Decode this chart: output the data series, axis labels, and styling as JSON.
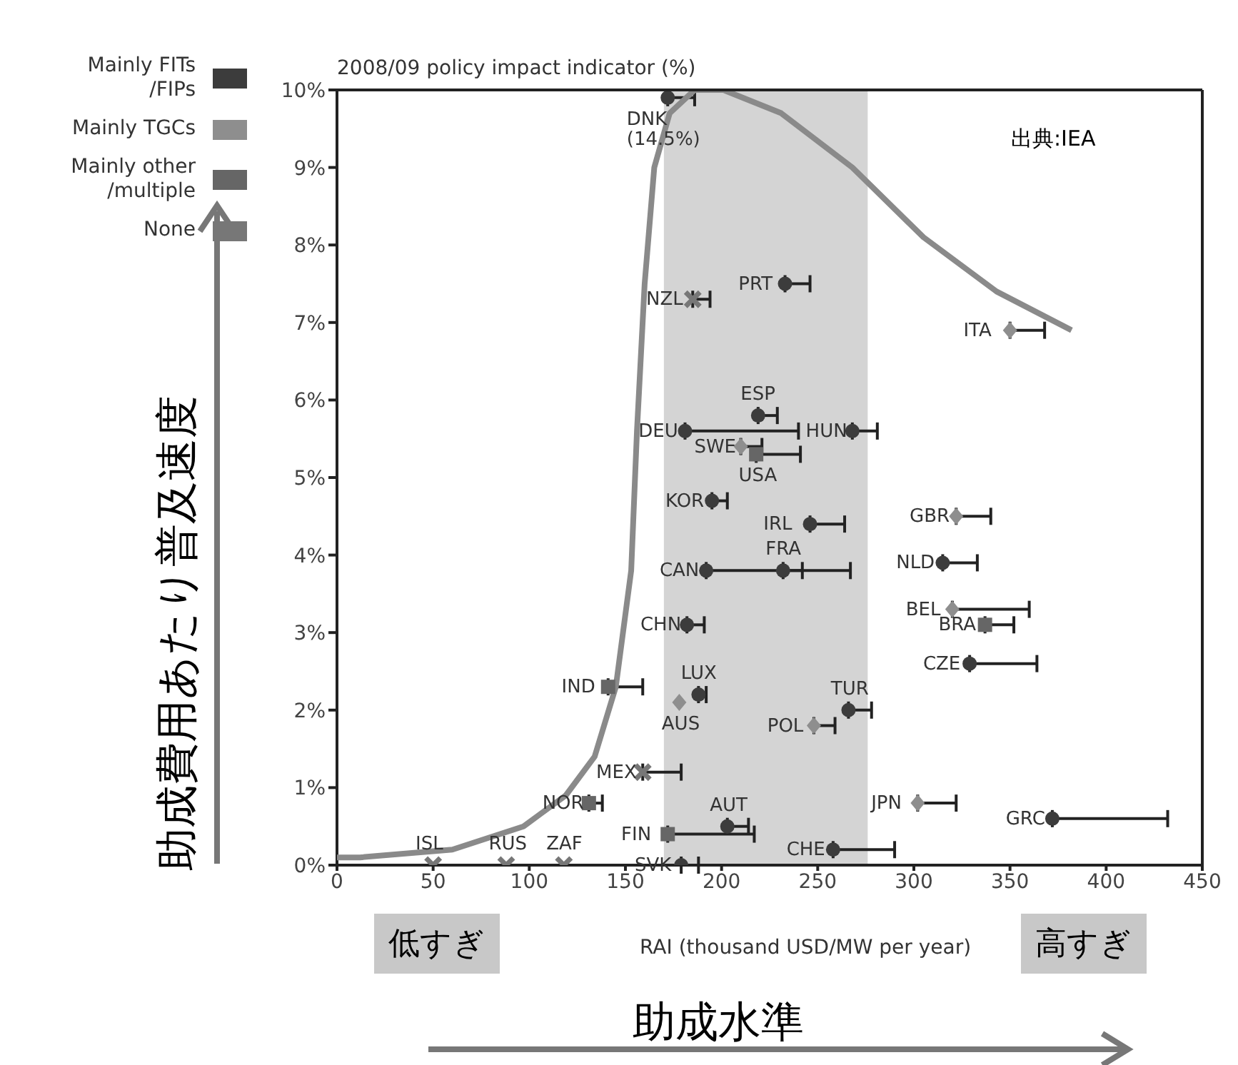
{
  "chart_data": {
    "type": "scatter",
    "xlabel": "RAI (thousand USD/MW per year)",
    "ylabel": "2008/09 policy impact indicator (%)",
    "xlim": [
      0,
      450
    ],
    "xticks": [
      0,
      50,
      100,
      150,
      200,
      250,
      300,
      350,
      400,
      450
    ],
    "ylim": [
      0,
      10
    ],
    "yticks": [
      {
        "value": 0,
        "label": "0%"
      },
      {
        "value": 1,
        "label": "1%"
      },
      {
        "value": 2,
        "label": "2%"
      },
      {
        "value": 3,
        "label": "3%"
      },
      {
        "value": 4,
        "label": "4%"
      },
      {
        "value": 5,
        "label": "5%"
      },
      {
        "value": 6,
        "label": "6%"
      },
      {
        "value": 7,
        "label": "7%"
      },
      {
        "value": 8,
        "label": "8%"
      },
      {
        "value": 9,
        "label": "9%"
      },
      {
        "value": 10,
        "label": "10%"
      }
    ],
    "legend": "left",
    "bands": [
      {
        "axis": "x",
        "from": 170,
        "to": 276,
        "color": "#d4d4d4"
      }
    ],
    "series": [
      {
        "name": "Mainly FITs\n/FIPs",
        "color": "#3c3c3c",
        "marker": "circle",
        "x": [
          172,
          233,
          219,
          181,
          268,
          195,
          246,
          192,
          232,
          315,
          182,
          329,
          188,
          266,
          372,
          203,
          258,
          179
        ],
        "values": [
          9.9,
          7.5,
          5.8,
          5.6,
          5.6,
          4.7,
          4.4,
          3.8,
          3.8,
          3.9,
          3.1,
          2.6,
          2.2,
          2.0,
          0.6,
          0.5,
          0.2,
          0
        ],
        "xerrors": [
          [
            172,
            186
          ],
          [
            233,
            246
          ],
          [
            219,
            229
          ],
          [
            181,
            240
          ],
          [
            268,
            281
          ],
          [
            195,
            203
          ],
          [
            246,
            264
          ],
          [
            192,
            242
          ],
          [
            232,
            267
          ],
          [
            315,
            333
          ],
          [
            182,
            191
          ],
          [
            329,
            364
          ],
          [
            188,
            192
          ],
          [
            266,
            278
          ],
          [
            372,
            432
          ],
          [
            203,
            214
          ],
          [
            258,
            290
          ],
          [
            179,
            188
          ]
        ]
      },
      {
        "name": "Mainly TGCs",
        "color": "#8e8e8e",
        "marker": "diamond",
        "x": [
          350,
          210,
          322,
          320,
          178,
          248,
          302
        ],
        "values": [
          6.9,
          5.4,
          4.5,
          3.3,
          2.1,
          1.8,
          0.8
        ],
        "xerrors": [
          [
            350,
            368
          ],
          [
            210,
            221
          ],
          [
            322,
            340
          ],
          [
            320,
            360
          ],
          null,
          [
            248,
            259
          ],
          [
            302,
            322
          ]
        ]
      },
      {
        "name": "Mainly other\n/multiple",
        "color": "#666666",
        "marker": "square",
        "x": [
          218,
          337,
          141,
          131,
          172
        ],
        "values": [
          5.3,
          3.1,
          2.3,
          0.8,
          0.4
        ],
        "xerrors": [
          [
            218,
            241
          ],
          [
            337,
            352
          ],
          [
            141,
            159
          ],
          [
            131,
            138
          ],
          [
            172,
            217
          ]
        ]
      },
      {
        "name": "None",
        "color": "#777777",
        "marker": "cross",
        "x": [
          185,
          159,
          50,
          88,
          118
        ],
        "values": [
          7.3,
          1.2,
          0,
          0,
          0
        ],
        "xerrors": [
          [
            185,
            194
          ],
          [
            159,
            179
          ],
          null,
          null,
          null
        ]
      },
      {
        "type": "line",
        "color": "#8a8a8a",
        "x": [
          0,
          12,
          60,
          97,
          119,
          134,
          145,
          153,
          156,
          160,
          165,
          173,
          186,
          201,
          231,
          268,
          305,
          343,
          382
        ],
        "values": [
          0.1,
          0.1,
          0.2,
          0.5,
          0.9,
          1.4,
          2.3,
          3.8,
          5.6,
          7.5,
          9.0,
          9.7,
          10.0,
          10.0,
          9.7,
          9.0,
          8.1,
          7.4,
          6.9
        ]
      }
    ],
    "annotations": [
      "出典:IEA",
      "低すぎ",
      "高すぎ",
      "助成水準",
      "助成費用あたり普及速度",
      {
        "text": "DNK\n(14.5%)",
        "x": 172,
        "y": 9.9
      },
      {
        "text": "PRT",
        "x": 233,
        "y": 7.5
      },
      {
        "text": "NZL",
        "x": 185,
        "y": 7.3
      },
      {
        "text": "ITA",
        "x": 350,
        "y": 6.9
      },
      {
        "text": "ESP",
        "x": 219,
        "y": 5.8
      },
      {
        "text": "DEU",
        "x": 181,
        "y": 5.6
      },
      {
        "text": "HUN",
        "x": 268,
        "y": 5.6
      },
      {
        "text": "SWE",
        "x": 210,
        "y": 5.4
      },
      {
        "text": "USA",
        "x": 218,
        "y": 5.3
      },
      {
        "text": "KOR",
        "x": 195,
        "y": 4.7
      },
      {
        "text": "GBR",
        "x": 322,
        "y": 4.5
      },
      {
        "text": "IRL",
        "x": 246,
        "y": 4.4
      },
      {
        "text": "NLD",
        "x": 315,
        "y": 3.9
      },
      {
        "text": "CAN",
        "x": 192,
        "y": 3.8
      },
      {
        "text": "FRA",
        "x": 232,
        "y": 3.8
      },
      {
        "text": "BEL",
        "x": 320,
        "y": 3.3
      },
      {
        "text": "BRA",
        "x": 337,
        "y": 3.1
      },
      {
        "text": "CHN",
        "x": 182,
        "y": 3.1
      },
      {
        "text": "CZE",
        "x": 329,
        "y": 2.6
      },
      {
        "text": "IND",
        "x": 141,
        "y": 2.3
      },
      {
        "text": "LUX",
        "x": 188,
        "y": 2.2
      },
      {
        "text": "AUS",
        "x": 178,
        "y": 2.1
      },
      {
        "text": "TUR",
        "x": 266,
        "y": 2.0
      },
      {
        "text": "POL",
        "x": 248,
        "y": 1.8
      },
      {
        "text": "MEX",
        "x": 159,
        "y": 1.2
      },
      {
        "text": "JPN",
        "x": 302,
        "y": 0.8
      },
      {
        "text": "NOR",
        "x": 131,
        "y": 0.8
      },
      {
        "text": "GRC",
        "x": 372,
        "y": 0.6
      },
      {
        "text": "AUT",
        "x": 203,
        "y": 0.5
      },
      {
        "text": "FIN",
        "x": 172,
        "y": 0.4
      },
      {
        "text": "CHE",
        "x": 258,
        "y": 0.2
      },
      {
        "text": "SVK",
        "x": 179,
        "y": 0
      },
      {
        "text": "ISL",
        "x": 50,
        "y": 0
      },
      {
        "text": "RUS",
        "x": 88,
        "y": 0
      },
      {
        "text": "ZAF",
        "x": 118,
        "y": 0
      }
    ]
  }
}
